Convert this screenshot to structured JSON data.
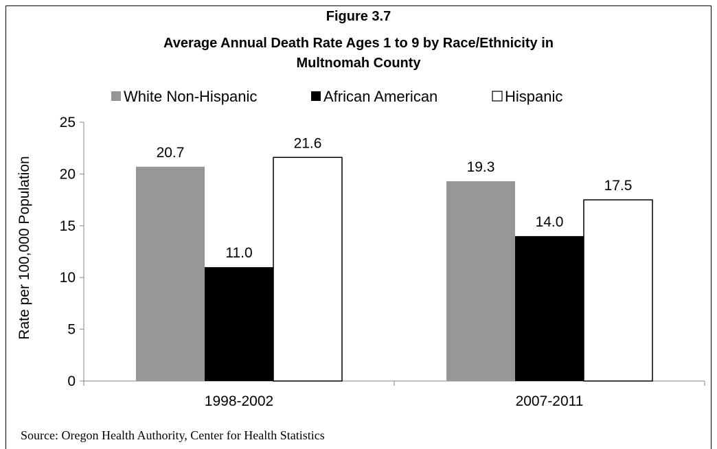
{
  "chart_data": {
    "type": "bar",
    "title_lines": [
      "Figure 3.7",
      "Average Annual Death Rate Ages 1 to 9 by Race/Ethnicity in",
      "Multnomah County"
    ],
    "categories": [
      "1998-2002",
      "2007-2011"
    ],
    "series": [
      {
        "name": "White Non-Hispanic",
        "values": [
          20.7,
          19.3
        ],
        "color": "#969696"
      },
      {
        "name": "African American",
        "values": [
          11.0,
          14.0
        ],
        "color": "#000000"
      },
      {
        "name": "Hispanic",
        "values": [
          21.6,
          17.5
        ],
        "color": "#ffffff"
      }
    ],
    "value_labels": [
      [
        "20.7",
        "19.3"
      ],
      [
        "11.0",
        "14.0"
      ],
      [
        "21.6",
        "17.5"
      ]
    ],
    "ylabel": "Rate per 100,000 Population",
    "ylim": [
      0,
      25
    ],
    "yticks": [
      0,
      5,
      10,
      15,
      20,
      25
    ],
    "grid": false,
    "legend_position": "top"
  },
  "source": "Source: Oregon Health Authority, Center for Health Statistics"
}
